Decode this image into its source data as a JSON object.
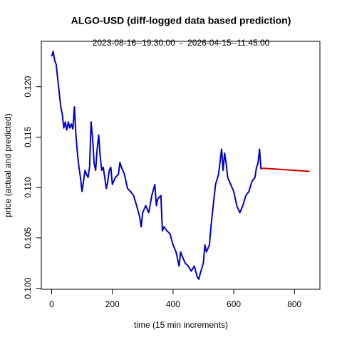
{
  "chart_data": {
    "type": "line",
    "title": "ALGO-USD (diff-logged data based prediction)",
    "subtitle": "2023-08-16--19:30:00  -  2026-04-15--11:45:00",
    "xlabel": "time (15 min increments)",
    "ylabel": "price (actual and predicted)",
    "xlim": [
      -34,
      884
    ],
    "xticks": [
      0,
      200,
      400,
      600,
      800
    ],
    "ylim": [
      0.0999,
      0.1245
    ],
    "yticks": [
      {
        "value": 0.1,
        "label": "0.100"
      },
      0.105,
      {
        "value": 0.11,
        "label": "0.110"
      },
      0.115,
      {
        "value": 0.12,
        "label": "0.120"
      }
    ],
    "series": [
      {
        "color": "#0000cd",
        "x": [
          0,
          5,
          10,
          15,
          20,
          25,
          30,
          35,
          40,
          45,
          50,
          55,
          60,
          65,
          70,
          75,
          80,
          85,
          90,
          95,
          100,
          105,
          110,
          115,
          120,
          125,
          130,
          135,
          140,
          145,
          150,
          155,
          160,
          165,
          170,
          175,
          180,
          185,
          190,
          195,
          200,
          210,
          220,
          225,
          230,
          240,
          250,
          260,
          270,
          280,
          290,
          295,
          300,
          310,
          320,
          330,
          340,
          345,
          350,
          360,
          365,
          370,
          380,
          390,
          400,
          410,
          420,
          425,
          430,
          440,
          450,
          460,
          470,
          480,
          485,
          490,
          500,
          505,
          510,
          520,
          525,
          530,
          540,
          550,
          560,
          565,
          570,
          575,
          580,
          590,
          600,
          605,
          610,
          620,
          630,
          640,
          650,
          660,
          670,
          675,
          680,
          685,
          690
        ],
        "values": [
          0.123,
          0.1235,
          0.1226,
          0.1222,
          0.1208,
          0.1194,
          0.118,
          0.1173,
          0.1159,
          0.1165,
          0.1157,
          0.1165,
          0.1159,
          0.1163,
          0.1158,
          0.118,
          0.1152,
          0.1134,
          0.112,
          0.111,
          0.1096,
          0.1106,
          0.1117,
          0.1113,
          0.111,
          0.112,
          0.1165,
          0.1149,
          0.1124,
          0.1117,
          0.1138,
          0.1152,
          0.1131,
          0.1117,
          0.112,
          0.111,
          0.1099,
          0.1106,
          0.1117,
          0.112,
          0.1103,
          0.111,
          0.1113,
          0.1125,
          0.112,
          0.1113,
          0.1099,
          0.1096,
          0.1092,
          0.1082,
          0.1071,
          0.1061,
          0.1075,
          0.1082,
          0.1075,
          0.1092,
          0.1103,
          0.1082,
          0.1089,
          0.1092,
          0.1057,
          0.1061,
          0.1057,
          0.1054,
          0.1043,
          0.1036,
          0.1022,
          0.1036,
          0.1032,
          0.1025,
          0.1022,
          0.1017,
          0.1022,
          0.1011,
          0.1009,
          0.1015,
          0.1025,
          0.1043,
          0.1036,
          0.1043,
          0.1061,
          0.1075,
          0.1103,
          0.1113,
          0.1138,
          0.1117,
          0.1134,
          0.1124,
          0.111,
          0.1103,
          0.1096,
          0.1089,
          0.1082,
          0.1075,
          0.1082,
          0.1092,
          0.1096,
          0.1106,
          0.111,
          0.112,
          0.1124,
          0.1138,
          0.1118
        ]
      },
      {
        "color": "#cd0000",
        "x": [
          690,
          700,
          750,
          800,
          850
        ],
        "values": [
          0.1119,
          0.1119,
          0.1118,
          0.1117,
          0.1116
        ]
      }
    ]
  }
}
